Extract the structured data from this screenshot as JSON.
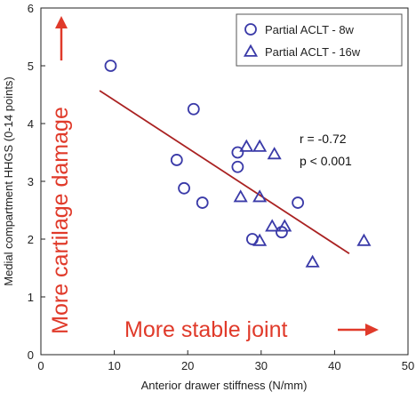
{
  "chart_data": {
    "type": "scatter",
    "xlabel": "Anterior drawer stiffness (N/mm)",
    "ylabel": "Medial compartment HHGS (0-14 points)",
    "xlim": [
      0,
      50
    ],
    "ylim": [
      0,
      6
    ],
    "x_ticks": [
      "0",
      "10",
      "20",
      "30",
      "40",
      "50"
    ],
    "y_ticks": [
      "0",
      "1",
      "2",
      "3",
      "4",
      "5",
      "6"
    ],
    "grid": false,
    "legend_position": "top-right",
    "series": [
      {
        "name": "Partial ACLT - 8w",
        "marker": "circle",
        "color": "#3a3aa8",
        "points": [
          {
            "x": 9.5,
            "y": 5.0
          },
          {
            "x": 20.8,
            "y": 4.25
          },
          {
            "x": 18.5,
            "y": 3.37
          },
          {
            "x": 19.5,
            "y": 2.88
          },
          {
            "x": 22.0,
            "y": 2.63
          },
          {
            "x": 26.8,
            "y": 3.5
          },
          {
            "x": 26.8,
            "y": 3.25
          },
          {
            "x": 28.8,
            "y": 2.0
          },
          {
            "x": 32.8,
            "y": 2.12
          },
          {
            "x": 35.0,
            "y": 2.63
          }
        ]
      },
      {
        "name": "Partial ACLT - 16w",
        "marker": "triangle",
        "color": "#3a3aa8",
        "points": [
          {
            "x": 28.0,
            "y": 3.6
          },
          {
            "x": 29.8,
            "y": 3.6
          },
          {
            "x": 31.8,
            "y": 3.47
          },
          {
            "x": 27.2,
            "y": 2.73
          },
          {
            "x": 29.8,
            "y": 2.73
          },
          {
            "x": 31.5,
            "y": 2.22
          },
          {
            "x": 33.2,
            "y": 2.22
          },
          {
            "x": 29.8,
            "y": 1.97
          },
          {
            "x": 37.0,
            "y": 1.6
          },
          {
            "x": 44.0,
            "y": 1.97
          }
        ]
      }
    ],
    "trendline": {
      "color": "#aa2222",
      "x": [
        8.0,
        42.0
      ],
      "y": [
        4.57,
        1.75
      ]
    },
    "stats": {
      "r": "r = -0.72",
      "p": "p < 0.001"
    },
    "annotations": {
      "y_direction": "More cartilage damage",
      "x_direction": "More stable joint",
      "color": "#e03a2a"
    }
  }
}
